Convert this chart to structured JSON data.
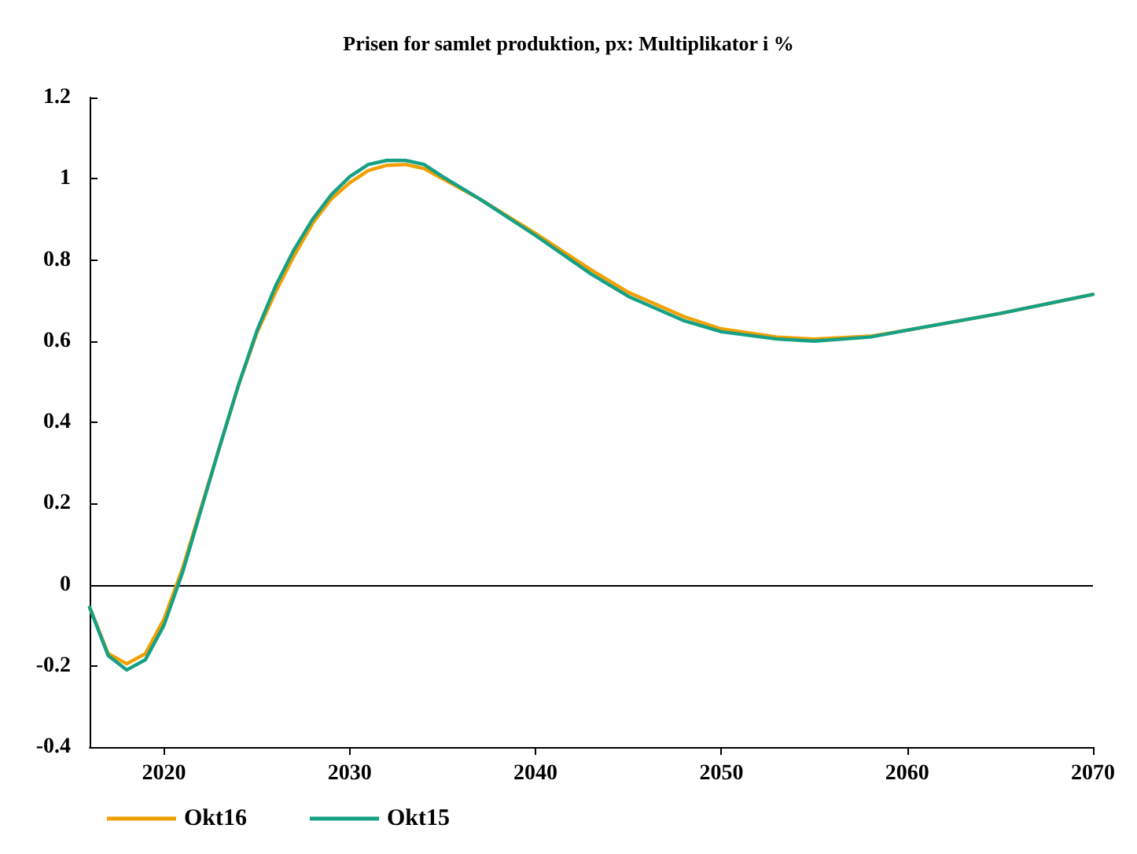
{
  "chart_data": {
    "type": "line",
    "title": "Prisen for samlet produktion, px: Multiplikator i %",
    "x": [
      2016,
      2017,
      2018,
      2019,
      2020,
      2021,
      2022,
      2023,
      2024,
      2025,
      2026,
      2027,
      2028,
      2029,
      2030,
      2031,
      2032,
      2033,
      2034,
      2035,
      2037,
      2040,
      2043,
      2045,
      2048,
      2050,
      2053,
      2055,
      2058,
      2060,
      2065,
      2070
    ],
    "series": [
      {
        "name": "Okt16",
        "color": "#f0a000",
        "values": [
          -0.056,
          -0.17,
          -0.195,
          -0.17,
          -0.085,
          0.04,
          0.19,
          0.34,
          0.49,
          0.62,
          0.72,
          0.81,
          0.89,
          0.95,
          0.99,
          1.02,
          1.033,
          1.035,
          1.025,
          1.0,
          0.95,
          0.865,
          0.775,
          0.72,
          0.66,
          0.63,
          0.61,
          0.605,
          0.612,
          0.627,
          0.668,
          0.715
        ]
      },
      {
        "name": "Okt15",
        "color": "#16a085",
        "values": [
          -0.056,
          -0.175,
          -0.21,
          -0.185,
          -0.1,
          0.03,
          0.185,
          0.34,
          0.49,
          0.625,
          0.735,
          0.825,
          0.9,
          0.96,
          1.005,
          1.035,
          1.045,
          1.045,
          1.035,
          1.005,
          0.95,
          0.86,
          0.765,
          0.71,
          0.65,
          0.623,
          0.605,
          0.6,
          0.61,
          0.627,
          0.668,
          0.715
        ]
      }
    ],
    "xlim": [
      2016,
      2070
    ],
    "xticks": [
      2020,
      2030,
      2040,
      2050,
      2060,
      2070
    ],
    "ylim": [
      -0.4,
      1.2
    ],
    "yticks": [
      -0.4,
      -0.2,
      0,
      0.2,
      0.4,
      0.6,
      0.8,
      1,
      1.2
    ],
    "ref_lines": [
      {
        "axis": "y",
        "value": 0,
        "color": "#000000"
      }
    ],
    "grid": false,
    "legend": "bottom left",
    "marker": "none",
    "line_style": "solid"
  }
}
